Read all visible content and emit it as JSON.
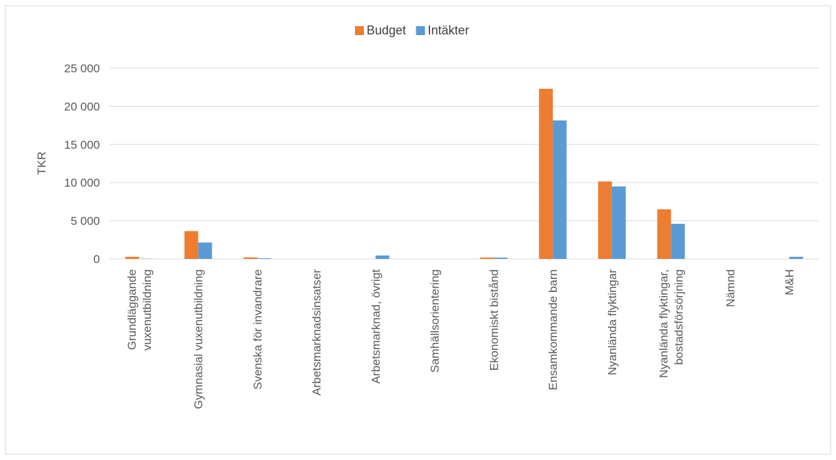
{
  "chart_data": {
    "type": "bar",
    "title": "",
    "xlabel": "",
    "ylabel": "TKR",
    "ylim": [
      0,
      25000
    ],
    "yticks": [
      0,
      5000,
      10000,
      15000,
      20000,
      25000
    ],
    "ytick_labels": [
      "0",
      "5 000",
      "10 000",
      "15 000",
      "20 000",
      "25 000"
    ],
    "grid": true,
    "legend_position": "top-center",
    "categories": [
      [
        "Grundläggande",
        "vuxenutbildning"
      ],
      [
        "Gymnasial vuxenutbildning"
      ],
      [
        "Svenska för invandrare"
      ],
      [
        "Arbetsmarknadsinsatser"
      ],
      [
        "Arbetsmarknad, övrigt"
      ],
      [
        "Samhällsorientering"
      ],
      [
        "Ekonomiskt bistånd"
      ],
      [
        "Ensamkommande barn"
      ],
      [
        "Nyanlända flyktingar"
      ],
      [
        "Nyanlända flyktingar,",
        "bostadsförsörjning"
      ],
      [
        "Nämnd"
      ],
      [
        "M&H"
      ]
    ],
    "series": [
      {
        "name": "Budget",
        "color": "#ED7D31",
        "values": [
          280,
          3650,
          200,
          0,
          0,
          0,
          180,
          22300,
          10150,
          6500,
          0,
          0
        ]
      },
      {
        "name": "Intäkter",
        "color": "#5B9BD5",
        "values": [
          30,
          2150,
          90,
          0,
          450,
          0,
          170,
          18150,
          9500,
          4600,
          0,
          280
        ]
      }
    ]
  }
}
